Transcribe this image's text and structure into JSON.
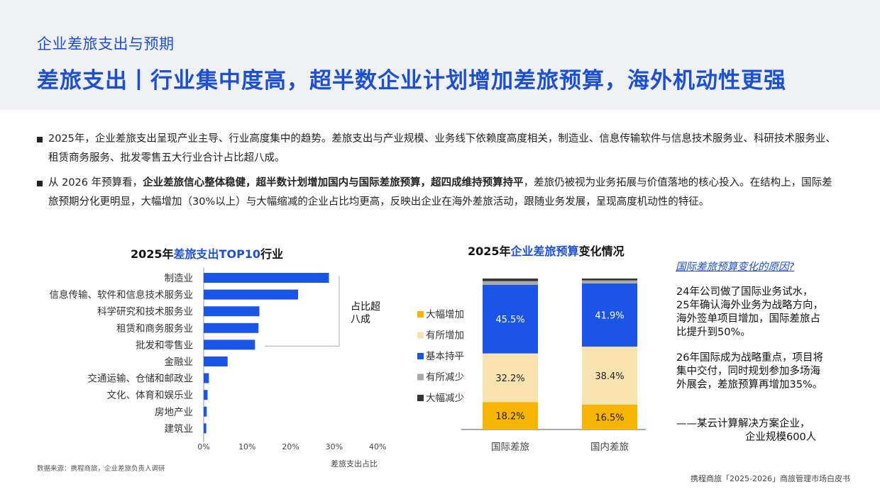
{
  "header": {
    "section_title": "企业差旅支出与预期",
    "main_title": "差旅支出丨行业集中度高，超半数企业计划增加差旅预算，海外机动性更强"
  },
  "bullets": [
    {
      "text": "2025年，企业差旅支出呈现产业主导、行业高度集中的趋势。差旅支出与产业规模、业务线下依赖度高度相关，制造业、信息传输软件与信息技术服务业、科研技术服务业、租赁商务服务、批发零售五大行业合计占比超八成。"
    },
    {
      "pre": "从 2026 年预算看，",
      "bold": "企业差旅信心整体稳健，超半数计划增加国内与国际差旅预算，超四成维持预算持平",
      "post": "，差旅仍被视为业务拓展与价值落地的核心投入。在结构上，国际差旅预期分化更明显，大幅增加（30%以上）与大幅缩减的企业占比均更高，反映出企业在海外差旅活动，跟随业务发展，呈现高度机动性的特征。"
    }
  ],
  "chart_left": {
    "title_pre": "2025年",
    "title_hl": "差旅支出TOP10",
    "title_post": "行业",
    "bracket_label_1": "占比超",
    "bracket_label_2": "八成",
    "bar_color": "#1b55e8"
  },
  "chart_right": {
    "title_pre": "2025年",
    "title_hl": "企业差旅预算",
    "title_post": "变化情况"
  },
  "chart_data": [
    {
      "type": "bar",
      "orientation": "horizontal",
      "categories": [
        "制造业",
        "信息传输、软件和信息技术服务业",
        "科学研究和技术服务业",
        "租赁和商务服务业",
        "批发和零售业",
        "金融业",
        "交通运输、仓储和邮政业",
        "文化、体育和娱乐业",
        "房地产业",
        "建筑业"
      ],
      "values": [
        28.8,
        21.7,
        12.8,
        12.6,
        11.8,
        5.5,
        1.2,
        0.9,
        0.7,
        0.6
      ],
      "xlabel": "差旅支出占比",
      "xlim": [
        0,
        40
      ],
      "xticks": [
        "0%",
        "10%",
        "20%",
        "30%",
        "40%"
      ],
      "title": "2025年差旅支出TOP10行业"
    },
    {
      "type": "bar",
      "stacked": true,
      "categories": [
        "国际差旅",
        "国内差旅"
      ],
      "series": [
        {
          "name": "大幅增加",
          "color": "#f7b500",
          "values": [
            18.2,
            16.5
          ],
          "labels": [
            "18.2%",
            "16.5%"
          ]
        },
        {
          "name": "有所增加",
          "color": "#f8e2b0",
          "values": [
            32.2,
            38.4
          ],
          "labels": [
            "32.2%",
            "38.4%"
          ]
        },
        {
          "name": "基本持平",
          "color": "#1b55e8",
          "values": [
            45.5,
            41.9
          ],
          "labels": [
            "45.5%",
            "41.9%"
          ]
        },
        {
          "name": "有所减少",
          "color": "#aaaaaa",
          "values": [
            2.4,
            2.0
          ],
          "labels": [
            "",
            ""
          ]
        },
        {
          "name": "大幅减少",
          "color": "#333333",
          "values": [
            1.7,
            1.2
          ],
          "labels": [
            "",
            ""
          ]
        }
      ],
      "ylim": [
        0,
        100
      ],
      "legend": "left",
      "title": "2025年企业差旅预算变化情况"
    }
  ],
  "reason": {
    "title": "国际差旅预算变化的原因?",
    "p1": "24年公司做了国际业务试水，25年确认海外业务为战略方向，海外签单项目增加，国际差旅占比提升到50%。",
    "p2": "26年国际成为战略重点，项目将集中交付，同时规划参加多场海外展会，差旅预算再增加35%。",
    "quote_1": "——某云计算解决方案企业，",
    "quote_2": "企业规模600人"
  },
  "source": "数据来源：携程商旅，企业差旅负责人调研",
  "footer": "携程商旅「2025-2026」商旅管理市场白皮书"
}
